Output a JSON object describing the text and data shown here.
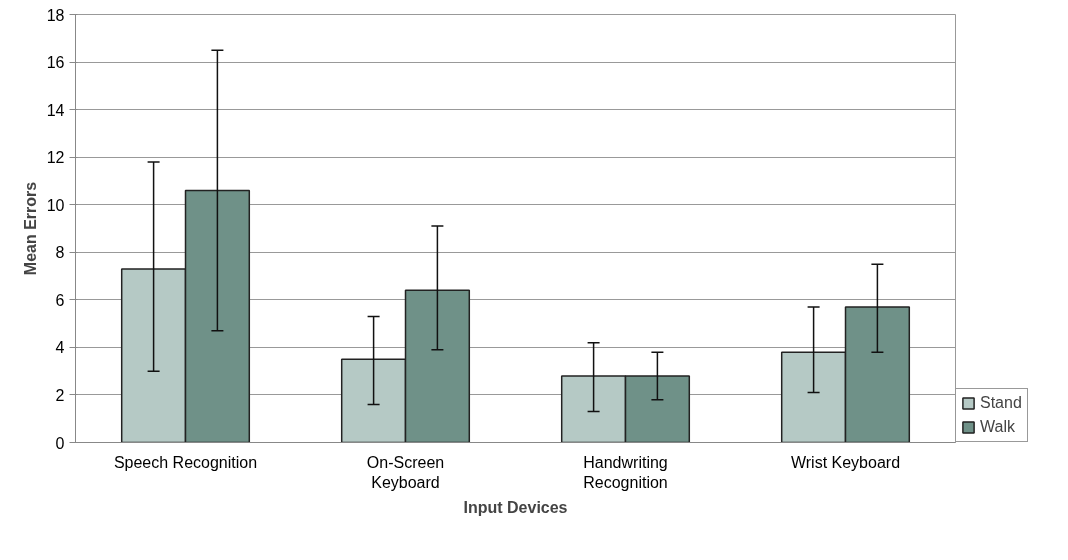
{
  "chart_data": {
    "type": "bar",
    "xlabel": "Input Devices",
    "ylabel": "Mean Errors",
    "categories": [
      "Speech Recognition",
      "On-Screen\nKeyboard",
      "Handwriting\nRecognition",
      "Wrist Keyboard"
    ],
    "series": [
      {
        "name": "Stand",
        "color": "#b5c9c5",
        "values": [
          7.3,
          3.5,
          2.8,
          3.8
        ],
        "errors": [
          [
            3.0,
            11.8
          ],
          [
            1.6,
            5.3
          ],
          [
            1.3,
            4.2
          ],
          [
            2.1,
            5.7
          ]
        ]
      },
      {
        "name": "Walk",
        "color": "#6f9188",
        "values": [
          10.6,
          6.4,
          2.8,
          5.7
        ],
        "errors": [
          [
            4.7,
            16.5
          ],
          [
            3.9,
            9.1
          ],
          [
            1.8,
            3.8
          ],
          [
            3.8,
            7.5
          ]
        ]
      }
    ],
    "ylim": [
      0,
      18
    ],
    "yticks": [
      0,
      2,
      4,
      6,
      8,
      10,
      12,
      14,
      16,
      18
    ],
    "grid": "y",
    "legend": "right"
  }
}
